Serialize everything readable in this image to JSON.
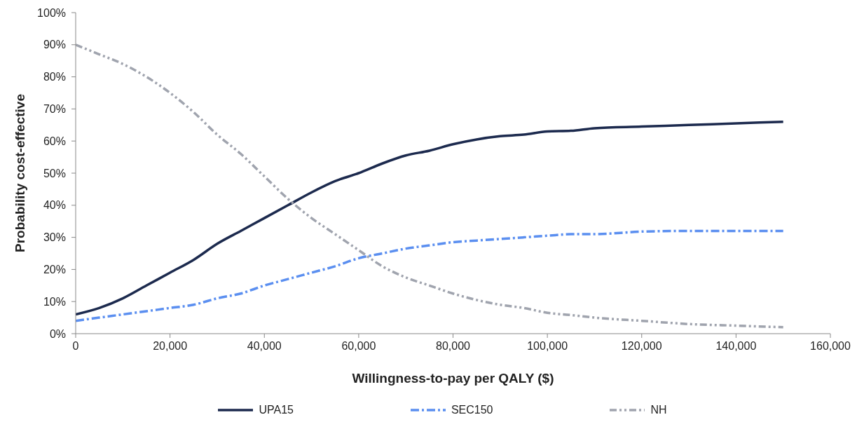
{
  "chart_data": {
    "type": "line",
    "xlabel": "Willingness-to-pay per QALY ($)",
    "ylabel": "Probability cost-effective",
    "x": [
      0,
      5000,
      10000,
      15000,
      20000,
      25000,
      30000,
      35000,
      40000,
      45000,
      50000,
      55000,
      60000,
      65000,
      70000,
      75000,
      80000,
      85000,
      90000,
      95000,
      100000,
      105000,
      110000,
      120000,
      130000,
      140000,
      150000
    ],
    "series": [
      {
        "name": "UPA15",
        "color": "#1c2a4e",
        "line_style": "solid",
        "values": [
          6,
          8,
          11,
          15,
          19,
          23,
          28,
          32,
          36,
          40,
          44,
          47.5,
          50,
          53,
          55.5,
          57,
          59,
          60.5,
          61.5,
          62,
          63,
          63.2,
          64,
          64.5,
          65,
          65.5,
          66
        ]
      },
      {
        "name": "SEC150",
        "color": "#5b8ff0",
        "line_style": "dashed",
        "values": [
          4,
          5,
          6,
          7,
          8,
          9,
          11,
          12.5,
          15,
          17,
          19,
          21,
          23.5,
          25,
          26.5,
          27.5,
          28.5,
          29,
          29.5,
          30,
          30.5,
          31,
          31,
          31.8,
          32,
          32,
          32
        ]
      },
      {
        "name": "NH",
        "color": "#a0a4ae",
        "line_style": "dotted",
        "values": [
          90,
          87,
          84,
          80,
          75,
          69,
          62,
          56,
          49,
          42,
          36,
          31,
          26,
          21,
          17.5,
          15,
          12.5,
          10.5,
          9,
          8,
          6.5,
          5.8,
          5,
          4,
          3,
          2.5,
          2
        ]
      }
    ],
    "xlim": [
      0,
      160000
    ],
    "xticks": [
      0,
      {
        "value": 20000,
        "label": "20,000"
      },
      {
        "value": 40000,
        "label": "40,000"
      },
      {
        "value": 60000,
        "label": "60,000"
      },
      {
        "value": 80000,
        "label": "80,000"
      },
      {
        "value": 100000,
        "label": "100,000"
      },
      {
        "value": 120000,
        "label": "120,000"
      },
      {
        "value": 140000,
        "label": "140,000"
      },
      {
        "value": 160000,
        "label": "160,000"
      }
    ],
    "ylim": [
      0,
      100
    ],
    "yticks": [
      {
        "value": 0,
        "label": "0%"
      },
      {
        "value": 10,
        "label": "10%"
      },
      {
        "value": 20,
        "label": "20%"
      },
      {
        "value": 30,
        "label": "30%"
      },
      {
        "value": 40,
        "label": "40%"
      },
      {
        "value": 50,
        "label": "50%"
      },
      {
        "value": 60,
        "label": "60%"
      },
      {
        "value": 70,
        "label": "70%"
      },
      {
        "value": 80,
        "label": "80%"
      },
      {
        "value": 90,
        "label": "90%"
      },
      {
        "value": 100,
        "label": "100%"
      }
    ],
    "grid": false,
    "legend": "bottom",
    "marker": "none"
  }
}
